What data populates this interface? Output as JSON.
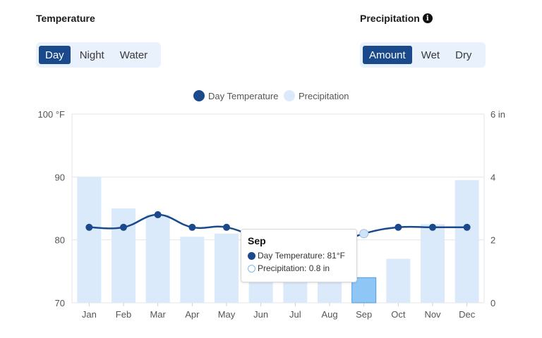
{
  "filters": {
    "temperature": {
      "title": "Temperature",
      "options": [
        "Day",
        "Night",
        "Water"
      ],
      "selected": "Day"
    },
    "precipitation": {
      "title": "Precipitation",
      "info_icon": "info-icon",
      "options": [
        "Amount",
        "Wet",
        "Dry"
      ],
      "selected": "Amount"
    }
  },
  "colors": {
    "accent": "#1a4a8c",
    "line": "#1a4a8c",
    "bar": "#dbeafb",
    "bar_highlight": "#8ec6f5"
  },
  "chart_data": {
    "type": "bar",
    "categories": [
      "Jan",
      "Feb",
      "Mar",
      "Apr",
      "May",
      "Jun",
      "Jul",
      "Aug",
      "Sep",
      "Oct",
      "Nov",
      "Dec"
    ],
    "series": [
      {
        "name": "Day Temperature",
        "type": "line",
        "axis": "left",
        "values": [
          82,
          82,
          84,
          82,
          82,
          80,
          78,
          79,
          81,
          82,
          82,
          82
        ]
      },
      {
        "name": "Precipitation",
        "type": "bar",
        "axis": "right",
        "values": [
          4.0,
          3.0,
          2.8,
          2.1,
          2.2,
          1.8,
          0.7,
          1.2,
          0.8,
          1.4,
          2.5,
          3.9
        ]
      }
    ],
    "y_left": {
      "ticks": [
        "70",
        "80",
        "90",
        "100 °F"
      ],
      "ylim": [
        70,
        100
      ]
    },
    "y_right": {
      "ticks": [
        "0",
        "2",
        "4",
        "6 in"
      ],
      "ylim": [
        0,
        6
      ]
    },
    "legend_position": "top-center",
    "highlighted_category": "Sep",
    "tooltip": {
      "title": "Sep",
      "rows": [
        "Day Temperature: 81°F",
        "Precipitation: 0.8 in"
      ]
    }
  }
}
